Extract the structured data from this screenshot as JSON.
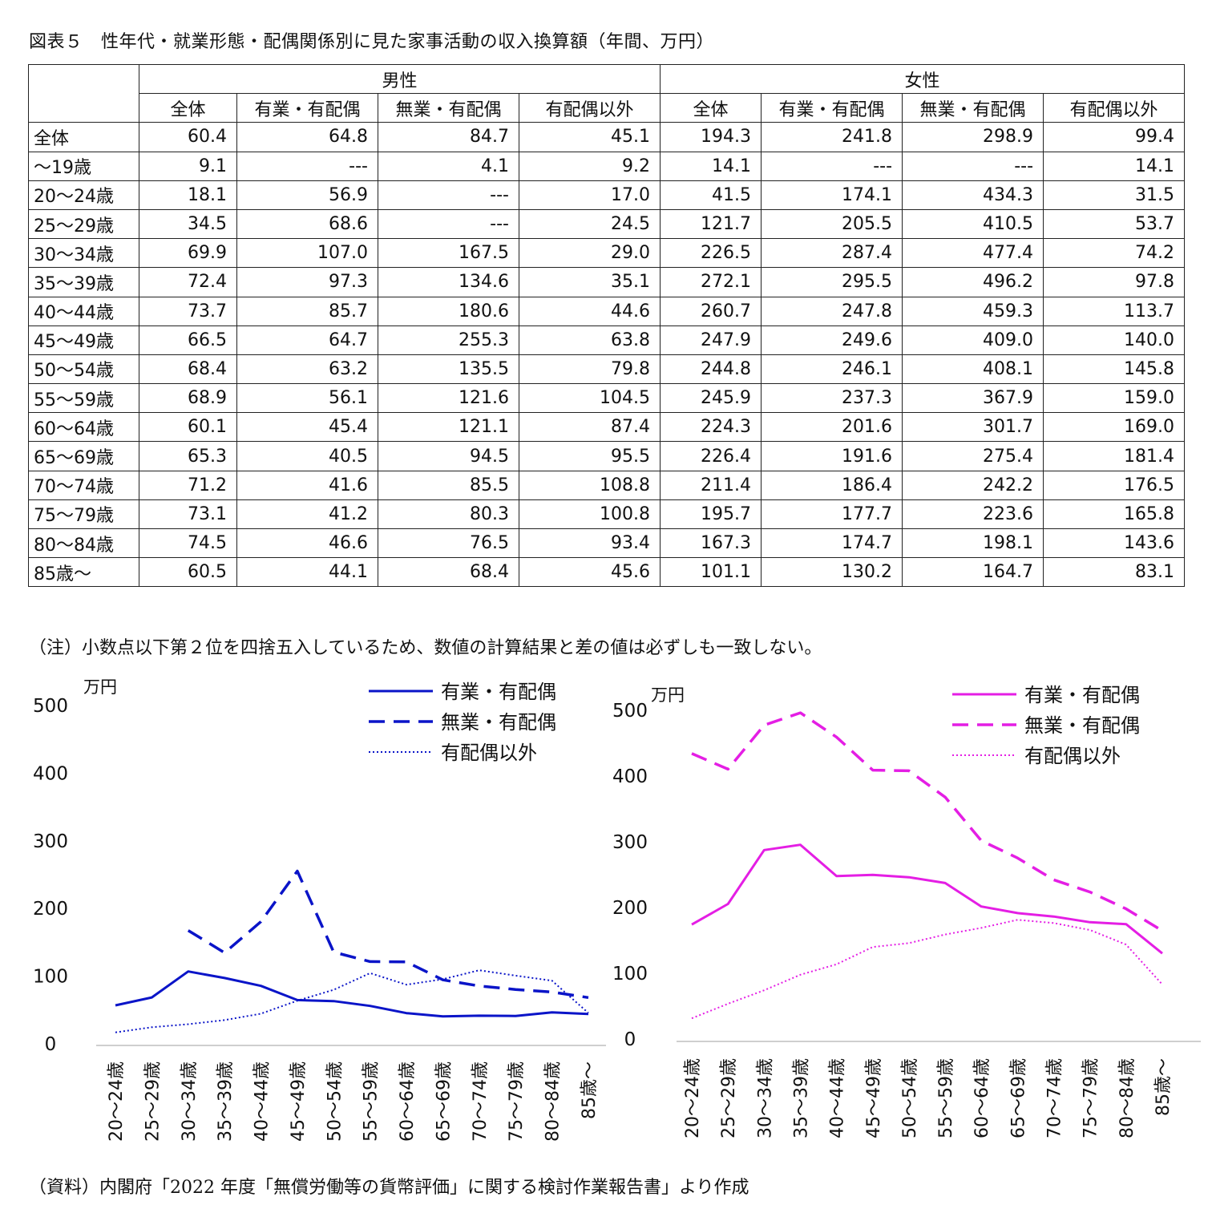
{
  "title": "図表５　性年代・就業形態・配偶関係別に見た家事活動の収入換算額（年間、万円）",
  "table": {
    "groups": [
      "男性",
      "女性"
    ],
    "columns": [
      "全体",
      "有業・有配偶",
      "無業・有配偶",
      "有配偶以外",
      "全体",
      "有業・有配偶",
      "無業・有配偶",
      "有配偶以外"
    ],
    "rows": [
      {
        "label": "全体",
        "values": [
          "60.4",
          "64.8",
          "84.7",
          "45.1",
          "194.3",
          "241.8",
          "298.9",
          "99.4"
        ]
      },
      {
        "label": "～19歳",
        "values": [
          "9.1",
          "---",
          "4.1",
          "9.2",
          "14.1",
          "---",
          "---",
          "14.1"
        ]
      },
      {
        "label": "20～24歳",
        "values": [
          "18.1",
          "56.9",
          "---",
          "17.0",
          "41.5",
          "174.1",
          "434.3",
          "31.5"
        ]
      },
      {
        "label": "25～29歳",
        "values": [
          "34.5",
          "68.6",
          "---",
          "24.5",
          "121.7",
          "205.5",
          "410.5",
          "53.7"
        ]
      },
      {
        "label": "30～34歳",
        "values": [
          "69.9",
          "107.0",
          "167.5",
          "29.0",
          "226.5",
          "287.4",
          "477.4",
          "74.2"
        ]
      },
      {
        "label": "35～39歳",
        "values": [
          "72.4",
          "97.3",
          "134.6",
          "35.1",
          "272.1",
          "295.5",
          "496.2",
          "97.8"
        ]
      },
      {
        "label": "40～44歳",
        "values": [
          "73.7",
          "85.7",
          "180.6",
          "44.6",
          "260.7",
          "247.8",
          "459.3",
          "113.7"
        ]
      },
      {
        "label": "45～49歳",
        "values": [
          "66.5",
          "64.7",
          "255.3",
          "63.8",
          "247.9",
          "249.6",
          "409.0",
          "140.0"
        ]
      },
      {
        "label": "50～54歳",
        "values": [
          "68.4",
          "63.2",
          "135.5",
          "79.8",
          "244.8",
          "246.1",
          "408.1",
          "145.8"
        ]
      },
      {
        "label": "55～59歳",
        "values": [
          "68.9",
          "56.1",
          "121.6",
          "104.5",
          "245.9",
          "237.3",
          "367.9",
          "159.0"
        ]
      },
      {
        "label": "60～64歳",
        "values": [
          "60.1",
          "45.4",
          "121.1",
          "87.4",
          "224.3",
          "201.6",
          "301.7",
          "169.0"
        ]
      },
      {
        "label": "65～69歳",
        "values": [
          "65.3",
          "40.5",
          "94.5",
          "95.5",
          "226.4",
          "191.6",
          "275.4",
          "181.4"
        ]
      },
      {
        "label": "70～74歳",
        "values": [
          "71.2",
          "41.6",
          "85.5",
          "108.8",
          "211.4",
          "186.4",
          "242.2",
          "176.5"
        ]
      },
      {
        "label": "75～79歳",
        "values": [
          "73.1",
          "41.2",
          "80.3",
          "100.8",
          "195.7",
          "177.7",
          "223.6",
          "165.8"
        ]
      },
      {
        "label": "80～84歳",
        "values": [
          "74.5",
          "46.6",
          "76.5",
          "93.4",
          "167.3",
          "174.7",
          "198.1",
          "143.6"
        ]
      },
      {
        "label": "85歳～",
        "values": [
          "60.5",
          "44.1",
          "68.4",
          "45.6",
          "101.1",
          "130.2",
          "164.7",
          "83.1"
        ]
      }
    ]
  },
  "note": "（注）小数点以下第２位を四捨五入しているため、数値の計算結果と差の値は必ずしも一致しない。",
  "source": "（資料）内閣府「2022 年度「無償労働等の貨幣評価」に関する検討作業報告書」より作成",
  "chart_data": [
    {
      "type": "line",
      "unit": "万円",
      "ylim": [
        0,
        500
      ],
      "yticks": [
        0,
        100,
        200,
        300,
        400,
        500
      ],
      "legend": "top-right",
      "grid": false,
      "color": "#0a14c8",
      "categories": [
        "20～24歳",
        "25～29歳",
        "30～34歳",
        "35～39歳",
        "40～44歳",
        "45～49歳",
        "50～54歳",
        "55～59歳",
        "60～64歳",
        "65～69歳",
        "70～74歳",
        "75～79歳",
        "80～84歳",
        "85歳～"
      ],
      "series": [
        {
          "name": "有業・有配偶",
          "style": "solid",
          "values": [
            56.9,
            68.6,
            107.0,
            97.3,
            85.7,
            64.7,
            63.2,
            56.1,
            45.4,
            40.5,
            41.6,
            41.2,
            46.6,
            44.1
          ]
        },
        {
          "name": "無業・有配偶",
          "style": "dashed",
          "values": [
            null,
            null,
            167.5,
            134.6,
            180.6,
            255.3,
            135.5,
            121.6,
            121.1,
            94.5,
            85.5,
            80.3,
            76.5,
            68.4
          ]
        },
        {
          "name": "有配偶以外",
          "style": "dotted",
          "values": [
            17.0,
            24.5,
            29.0,
            35.1,
            44.6,
            63.8,
            79.8,
            104.5,
            87.4,
            95.5,
            108.8,
            100.8,
            93.4,
            45.6
          ]
        }
      ]
    },
    {
      "type": "line",
      "unit": "万円",
      "ylim": [
        0,
        500
      ],
      "yticks": [
        0,
        100,
        200,
        300,
        400,
        500
      ],
      "legend": "top-right",
      "grid": false,
      "color": "#e41ee4",
      "categories": [
        "20～24歳",
        "25～29歳",
        "30～34歳",
        "35～39歳",
        "40～44歳",
        "45～49歳",
        "50～54歳",
        "55～59歳",
        "60～64歳",
        "65～69歳",
        "70～74歳",
        "75～79歳",
        "80～84歳",
        "85歳～"
      ],
      "series": [
        {
          "name": "有業・有配偶",
          "style": "solid",
          "values": [
            174.1,
            205.5,
            287.4,
            295.5,
            247.8,
            249.6,
            246.1,
            237.3,
            201.6,
            191.6,
            186.4,
            177.7,
            174.7,
            130.2
          ]
        },
        {
          "name": "無業・有配偶",
          "style": "dashed",
          "values": [
            434.3,
            410.5,
            477.4,
            496.2,
            459.3,
            409.0,
            408.1,
            367.9,
            301.7,
            275.4,
            242.2,
            223.6,
            198.1,
            164.7
          ]
        },
        {
          "name": "有配偶以外",
          "style": "dotted",
          "values": [
            31.5,
            53.7,
            74.2,
            97.8,
            113.7,
            140.0,
            145.8,
            159.0,
            169.0,
            181.4,
            176.5,
            165.8,
            143.6,
            83.1
          ]
        }
      ]
    }
  ]
}
